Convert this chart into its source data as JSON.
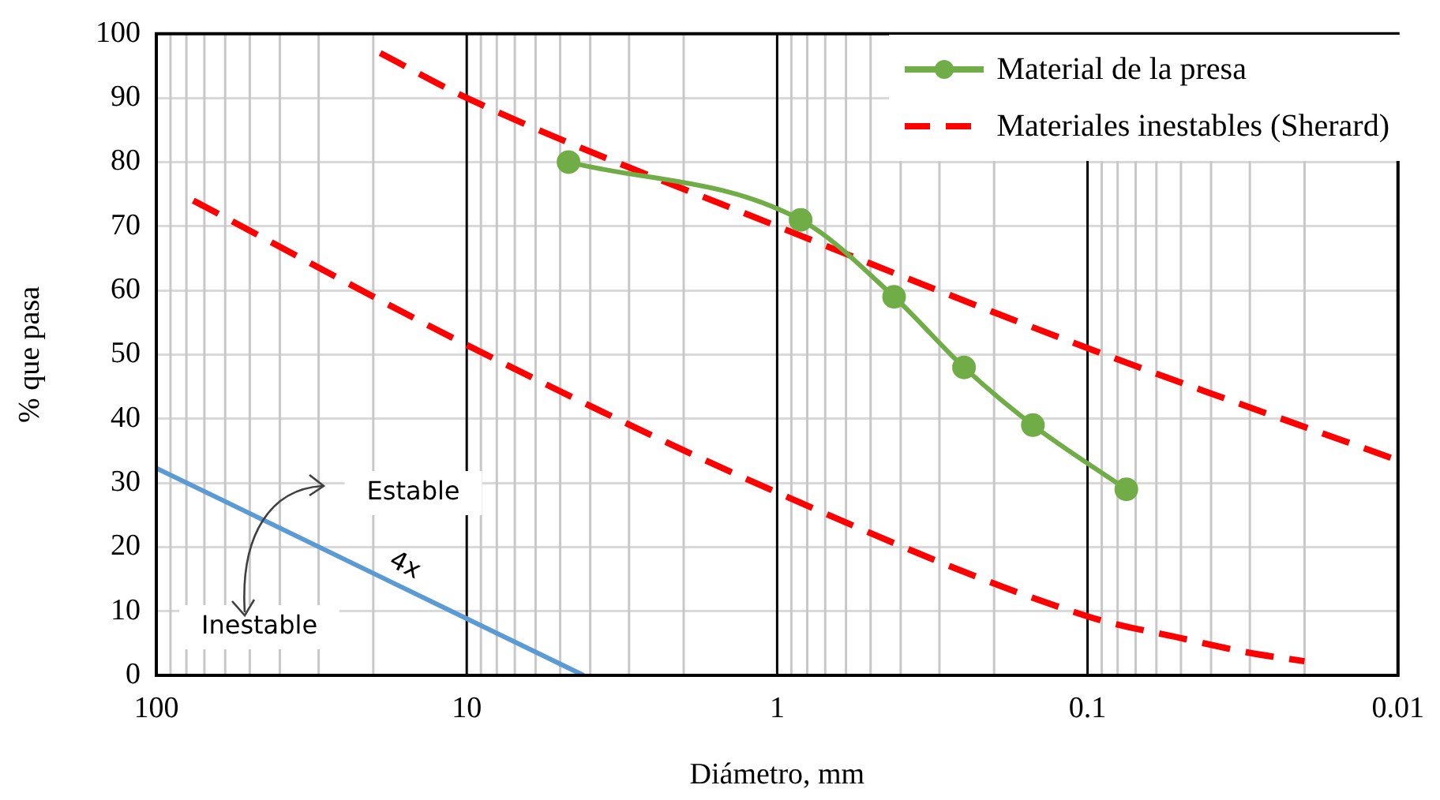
{
  "chart_data": {
    "type": "line",
    "xlabel": "Diámetro, mm",
    "ylabel": "% que pasa",
    "log": "x",
    "xlim": [
      100,
      0.01
    ],
    "xticks": [
      100,
      10,
      1,
      0.1,
      0.01
    ],
    "ylim": [
      0,
      100
    ],
    "yticks": [
      0,
      10,
      20,
      30,
      40,
      50,
      60,
      70,
      80,
      90,
      100
    ],
    "grid": true,
    "legend": "top right",
    "series": [
      {
        "name": "Material de la presa",
        "color": "#70ad47",
        "marker": "circle",
        "line_style": "solid",
        "x": [
          4.7,
          0.84,
          0.42,
          0.25,
          0.15,
          0.075
        ],
        "values": [
          80,
          71,
          59,
          48,
          39,
          29
        ]
      },
      {
        "name": "Materiales inestables (Sherard)",
        "color": "#ff0000",
        "marker": "none",
        "line_style": "dashed",
        "x": [
          19,
          10,
          1,
          0.1,
          0.01
        ],
        "values": [
          97,
          90,
          70,
          51,
          33.5
        ]
      },
      {
        "color": "#ff0000",
        "marker": "none",
        "line_style": "dashed",
        "x": [
          76,
          10,
          1,
          0.1,
          0.05,
          0.03,
          0.02
        ],
        "values": [
          74,
          51.5,
          28.5,
          9.2,
          5.8,
          3.5,
          2.2
        ]
      },
      {
        "color": "#5b9bd5",
        "marker": "none",
        "line_style": "solid",
        "x": [
          100,
          4.2
        ],
        "values": [
          32.3,
          0
        ]
      }
    ],
    "annotations": [
      "Estable",
      "Inestable",
      "4x"
    ]
  }
}
